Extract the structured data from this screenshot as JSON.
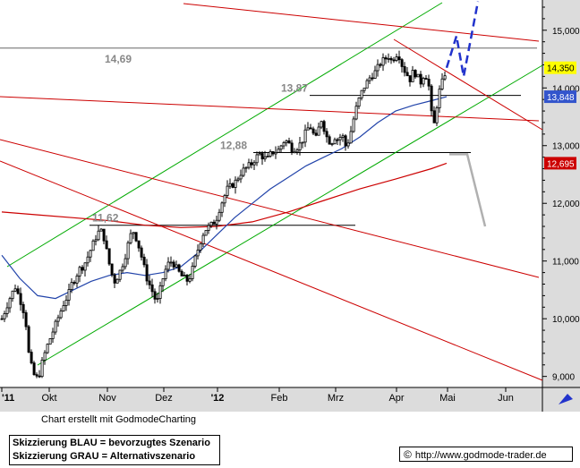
{
  "chart_data": {
    "type": "candlestick",
    "title": "",
    "x_tick_labels": [
      "'11",
      "Okt",
      "Nov",
      "Dez",
      "'12",
      "Feb",
      "Mrz",
      "Apr",
      "Mai",
      "Jun"
    ],
    "y_tick_labels": [
      "9,000",
      "10,000",
      "11,000",
      "12,000",
      "13,000",
      "14,000",
      "15,000"
    ],
    "ylim": [
      8700,
      15400
    ],
    "price_annotations": [
      {
        "label": "11,62",
        "value": 11620
      },
      {
        "label": "12,88",
        "value": 12880
      },
      {
        "label": "13,87",
        "value": 13870
      },
      {
        "label": "14,69",
        "value": 14690
      }
    ],
    "current_price_labels": [
      {
        "label": "14,350",
        "value": 14350,
        "color": "#ffff00"
      },
      {
        "label": "13,848",
        "value": 13848,
        "color": "#3355cc"
      },
      {
        "label": "12,695",
        "value": 12695,
        "color": "#cc0000"
      }
    ],
    "price_path": [
      [
        0,
        10000
      ],
      [
        5,
        10200
      ],
      [
        10,
        10400
      ],
      [
        15,
        10550
      ],
      [
        20,
        10350
      ],
      [
        25,
        10100
      ],
      [
        28,
        9800
      ],
      [
        30,
        9400
      ],
      [
        34,
        9100
      ],
      [
        38,
        8950
      ],
      [
        42,
        9050
      ],
      [
        46,
        9300
      ],
      [
        50,
        9500
      ],
      [
        55,
        9700
      ],
      [
        60,
        9900
      ],
      [
        65,
        10100
      ],
      [
        70,
        10300
      ],
      [
        74,
        10400
      ],
      [
        78,
        10600
      ],
      [
        82,
        10700
      ],
      [
        86,
        10850
      ],
      [
        90,
        10900
      ],
      [
        94,
        11000
      ],
      [
        98,
        11150
      ],
      [
        102,
        11300
      ],
      [
        106,
        11450
      ],
      [
        110,
        11550
      ],
      [
        114,
        11400
      ],
      [
        118,
        11100
      ],
      [
        122,
        10800
      ],
      [
        126,
        10650
      ],
      [
        130,
        10750
      ],
      [
        134,
        10900
      ],
      [
        138,
        11100
      ],
      [
        142,
        11350
      ],
      [
        146,
        11550
      ],
      [
        150,
        11400
      ],
      [
        154,
        11200
      ],
      [
        158,
        10950
      ],
      [
        162,
        10700
      ],
      [
        166,
        10550
      ],
      [
        170,
        10400
      ],
      [
        173,
        10250
      ],
      [
        176,
        10450
      ],
      [
        180,
        10700
      ],
      [
        184,
        10900
      ],
      [
        188,
        11000
      ],
      [
        192,
        10950
      ],
      [
        196,
        10850
      ],
      [
        200,
        10750
      ],
      [
        204,
        10700
      ],
      [
        208,
        10650
      ],
      [
        212,
        10800
      ],
      [
        216,
        11050
      ],
      [
        220,
        11250
      ],
      [
        224,
        11450
      ],
      [
        228,
        11550
      ],
      [
        232,
        11600
      ],
      [
        236,
        11650
      ],
      [
        240,
        11750
      ],
      [
        244,
        11950
      ],
      [
        248,
        12100
      ],
      [
        252,
        12250
      ],
      [
        256,
        12300
      ],
      [
        260,
        12350
      ],
      [
        264,
        12450
      ],
      [
        268,
        12550
      ],
      [
        272,
        12600
      ],
      [
        276,
        12650
      ],
      [
        280,
        12700
      ],
      [
        284,
        12800
      ],
      [
        288,
        12850
      ],
      [
        292,
        12800
      ],
      [
        296,
        12750
      ],
      [
        300,
        12850
      ],
      [
        304,
        12900
      ],
      [
        308,
        12900
      ],
      [
        312,
        13000
      ],
      [
        316,
        13100
      ],
      [
        320,
        13050
      ],
      [
        324,
        12950
      ],
      [
        328,
        12950
      ],
      [
        332,
        13000
      ],
      [
        336,
        13100
      ],
      [
        340,
        13250
      ],
      [
        344,
        13350
      ],
      [
        348,
        13200
      ],
      [
        352,
        13100
      ],
      [
        356,
        13500
      ],
      [
        360,
        13300
      ],
      [
        364,
        13100
      ],
      [
        368,
        13050
      ],
      [
        372,
        13150
      ],
      [
        376,
        13100
      ],
      [
        380,
        13200
      ],
      [
        384,
        13000
      ],
      [
        388,
        13100
      ],
      [
        392,
        13400
      ],
      [
        396,
        13650
      ],
      [
        400,
        13850
      ],
      [
        404,
        14000
      ],
      [
        408,
        14100
      ],
      [
        412,
        14200
      ],
      [
        416,
        14250
      ],
      [
        420,
        14350
      ],
      [
        424,
        14450
      ],
      [
        428,
        14500
      ],
      [
        432,
        14550
      ],
      [
        436,
        14450
      ],
      [
        440,
        14600
      ],
      [
        444,
        14550
      ],
      [
        448,
        14350
      ],
      [
        452,
        14250
      ],
      [
        456,
        14150
      ],
      [
        460,
        14300
      ],
      [
        464,
        14200
      ],
      [
        468,
        14100
      ],
      [
        472,
        14250
      ],
      [
        476,
        14150
      ],
      [
        478,
        13900
      ],
      [
        480,
        13550
      ],
      [
        482,
        13300
      ],
      [
        484,
        13450
      ],
      [
        486,
        13700
      ],
      [
        488,
        13900
      ],
      [
        490,
        14000
      ],
      [
        494,
        14200
      ],
      [
        497,
        14350
      ]
    ],
    "moving_average_blue": [
      [
        0,
        11100
      ],
      [
        20,
        10700
      ],
      [
        40,
        10400
      ],
      [
        60,
        10350
      ],
      [
        80,
        10500
      ],
      [
        100,
        10650
      ],
      [
        120,
        10750
      ],
      [
        140,
        10800
      ],
      [
        160,
        10750
      ],
      [
        180,
        10800
      ],
      [
        200,
        10900
      ],
      [
        220,
        11150
      ],
      [
        240,
        11450
      ],
      [
        260,
        11750
      ],
      [
        280,
        12000
      ],
      [
        300,
        12250
      ],
      [
        320,
        12450
      ],
      [
        340,
        12650
      ],
      [
        360,
        12800
      ],
      [
        380,
        12950
      ],
      [
        400,
        13150
      ],
      [
        420,
        13400
      ],
      [
        440,
        13600
      ],
      [
        460,
        13700
      ],
      [
        480,
        13780
      ],
      [
        497,
        13848
      ]
    ],
    "moving_average_red": [
      [
        0,
        11850
      ],
      [
        40,
        11800
      ],
      [
        80,
        11750
      ],
      [
        120,
        11700
      ],
      [
        160,
        11620
      ],
      [
        200,
        11580
      ],
      [
        240,
        11600
      ],
      [
        280,
        11680
      ],
      [
        320,
        11850
      ],
      [
        360,
        12050
      ],
      [
        400,
        12250
      ],
      [
        440,
        12420
      ],
      [
        480,
        12600
      ],
      [
        497,
        12695
      ]
    ],
    "scenario_blue": [
      [
        497,
        14350
      ],
      [
        508,
        14900
      ],
      [
        516,
        14200
      ],
      [
        532,
        15500
      ]
    ],
    "scenario_gray": [
      [
        500,
        12850
      ],
      [
        520,
        12850
      ],
      [
        540,
        11600
      ]
    ],
    "legend": [
      "Skizzierung BLAU = bevorzugtes Szenario",
      "Skizzierung GRAU = Alternativszenario"
    ]
  },
  "footer": {
    "credit": "Chart erstellt mit GodmodeCharting",
    "copyright_symbol": "©",
    "source_url": "http://www.godmode-trader.de"
  },
  "colors": {
    "candles": "#000000",
    "channel": "#00aa00",
    "trendlines": "#cc0000",
    "moving_average_blue": "#2244aa",
    "moving_average_red": "#cc0000",
    "scenario_blue": "#2233cc",
    "scenario_gray": "#b0b0b0",
    "axis_panel": "#dcdcdc"
  }
}
